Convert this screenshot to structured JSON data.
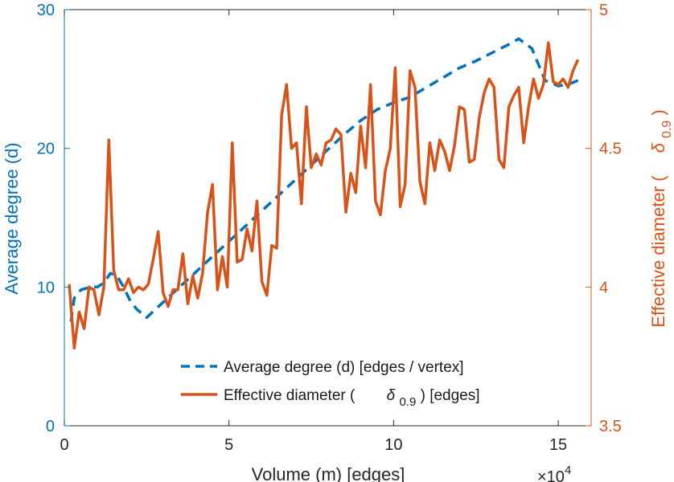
{
  "chart_data": {
    "type": "line",
    "xlabel": "Volume (m) [edges]",
    "x_exponent": "×10^4",
    "xlim": [
      0,
      16
    ],
    "xticks": [
      0,
      5,
      10,
      15
    ],
    "left_axis": {
      "label": "Average degree (d)",
      "ylim": [
        0,
        30
      ],
      "ticks": [
        0,
        10,
        20,
        30
      ],
      "color": "#0072BD"
    },
    "right_axis": {
      "label": "Effective diameter (",
      "label_symbol": "δ",
      "label_sub": "0.9",
      "label_close": ")",
      "ylim": [
        3.5,
        5
      ],
      "ticks": [
        3.5,
        4,
        4.5,
        5
      ],
      "color": "#D95319"
    },
    "legend_position": "bottom-center",
    "series": [
      {
        "name": "Average degree (d) [edges / vertex]",
        "axis": "left",
        "style": "dashed",
        "color": "#0072BD",
        "x": [
          0.2,
          0.3,
          0.5,
          0.8,
          1.0,
          1.2,
          1.4,
          1.6,
          1.8,
          2.0,
          2.2,
          2.5,
          3.0,
          3.5,
          4.0,
          4.5,
          5.0,
          5.5,
          6.0,
          6.5,
          7.0,
          7.5,
          8.0,
          8.5,
          9.0,
          9.5,
          10.0,
          10.5,
          11.0,
          11.5,
          12.0,
          12.5,
          13.0,
          13.5,
          13.8,
          14.2,
          14.6,
          15.0,
          15.3,
          15.6
        ],
        "y": [
          7.5,
          9.2,
          9.8,
          10.0,
          10.0,
          10.3,
          11.0,
          10.8,
          10.0,
          9.0,
          8.4,
          7.8,
          8.9,
          10.0,
          11.1,
          12.2,
          13.3,
          14.4,
          15.5,
          16.6,
          17.7,
          18.8,
          19.9,
          21.0,
          22.0,
          22.8,
          23.3,
          23.7,
          24.4,
          25.1,
          25.8,
          26.3,
          26.9,
          27.5,
          27.9,
          27.2,
          24.9,
          24.5,
          24.6,
          24.9
        ]
      },
      {
        "name": "Effective diameter (",
        "name_symbol": "δ",
        "name_sub": "0.9",
        "name_suffix": ") [edges]",
        "axis": "right",
        "style": "solid",
        "color": "#D95319",
        "x": [
          0.15,
          0.3,
          0.45,
          0.6,
          0.75,
          0.9,
          1.05,
          1.2,
          1.35,
          1.5,
          1.65,
          1.8,
          1.95,
          2.1,
          2.25,
          2.4,
          2.55,
          2.7,
          2.85,
          3.0,
          3.15,
          3.3,
          3.45,
          3.6,
          3.75,
          3.9,
          4.05,
          4.2,
          4.35,
          4.5,
          4.65,
          4.8,
          4.95,
          5.1,
          5.25,
          5.4,
          5.55,
          5.7,
          5.85,
          6.0,
          6.15,
          6.3,
          6.45,
          6.6,
          6.75,
          6.9,
          7.05,
          7.2,
          7.35,
          7.5,
          7.65,
          7.8,
          7.95,
          8.1,
          8.25,
          8.4,
          8.55,
          8.7,
          8.85,
          9.0,
          9.15,
          9.3,
          9.45,
          9.6,
          9.75,
          9.9,
          10.05,
          10.2,
          10.35,
          10.5,
          10.65,
          10.8,
          10.95,
          11.1,
          11.25,
          11.4,
          11.55,
          11.7,
          11.85,
          12.0,
          12.15,
          12.3,
          12.45,
          12.6,
          12.75,
          12.9,
          13.05,
          13.2,
          13.35,
          13.5,
          13.65,
          13.8,
          13.95,
          14.1,
          14.25,
          14.4,
          14.55,
          14.7,
          14.85,
          15.0,
          15.15,
          15.3,
          15.45,
          15.6
        ],
        "y": [
          4.01,
          3.78,
          3.91,
          3.85,
          4.0,
          3.99,
          3.9,
          4.0,
          4.53,
          4.06,
          3.99,
          3.99,
          4.03,
          3.98,
          4.0,
          3.99,
          4.01,
          4.1,
          4.2,
          3.98,
          3.93,
          3.99,
          3.99,
          4.12,
          3.94,
          4.04,
          3.96,
          4.05,
          4.27,
          4.37,
          3.99,
          4.11,
          4.0,
          4.52,
          4.09,
          4.1,
          4.21,
          4.13,
          4.31,
          4.02,
          3.97,
          4.15,
          4.14,
          4.62,
          4.73,
          4.5,
          4.52,
          4.3,
          4.65,
          4.43,
          4.48,
          4.44,
          4.52,
          4.53,
          4.57,
          4.55,
          4.27,
          4.41,
          4.34,
          4.58,
          4.43,
          4.73,
          4.31,
          4.26,
          4.42,
          4.5,
          4.79,
          4.29,
          4.37,
          4.78,
          4.72,
          4.38,
          4.3,
          4.52,
          4.42,
          4.53,
          4.49,
          4.42,
          4.51,
          4.65,
          4.64,
          4.45,
          4.46,
          4.61,
          4.7,
          4.75,
          4.72,
          4.46,
          4.43,
          4.65,
          4.69,
          4.72,
          4.52,
          4.65,
          4.75,
          4.68,
          4.73,
          4.88,
          4.74,
          4.73,
          4.75,
          4.72,
          4.78,
          4.82
        ]
      }
    ]
  }
}
